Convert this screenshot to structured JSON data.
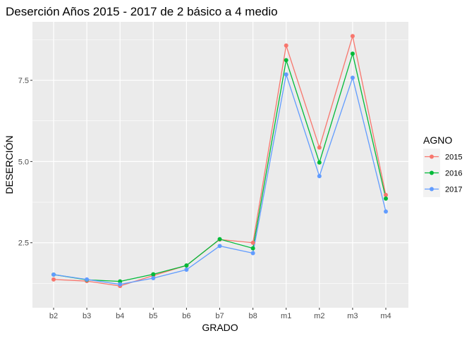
{
  "chart_data": {
    "type": "line",
    "title": "Deserción Años 2015 - 2017 de 2 básico a 4 medio",
    "xlabel": "GRADO",
    "ylabel": "DESERCIÓN",
    "categories": [
      "b2",
      "b3",
      "b4",
      "b5",
      "b6",
      "b7",
      "b8",
      "m1",
      "m2",
      "m3",
      "m4"
    ],
    "y_ticks": [
      2.5,
      5.0,
      7.5
    ],
    "y_tick_labels": [
      "2.5",
      "5.0",
      "7.5"
    ],
    "ylim": [
      0.5,
      9.3
    ],
    "grid": true,
    "legend": {
      "title": "AGNO",
      "position": "right"
    },
    "series": [
      {
        "name": "2015",
        "color": "#F8766D",
        "values": [
          1.37,
          1.32,
          1.17,
          1.49,
          1.8,
          2.6,
          2.5,
          8.57,
          5.43,
          8.86,
          3.97
        ]
      },
      {
        "name": "2016",
        "color": "#00BA38",
        "values": [
          1.52,
          1.36,
          1.31,
          1.53,
          1.8,
          2.61,
          2.33,
          8.12,
          4.97,
          8.32,
          3.86
        ]
      },
      {
        "name": "2017",
        "color": "#619CFF",
        "values": [
          1.52,
          1.37,
          1.22,
          1.41,
          1.67,
          2.4,
          2.18,
          7.68,
          4.55,
          7.58,
          3.46
        ]
      }
    ]
  }
}
